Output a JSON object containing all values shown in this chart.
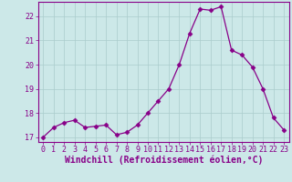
{
  "x": [
    0,
    1,
    2,
    3,
    4,
    5,
    6,
    7,
    8,
    9,
    10,
    11,
    12,
    13,
    14,
    15,
    16,
    17,
    18,
    19,
    20,
    21,
    22,
    23
  ],
  "y": [
    17.0,
    17.4,
    17.6,
    17.7,
    17.4,
    17.45,
    17.5,
    17.1,
    17.2,
    17.5,
    18.0,
    18.5,
    19.0,
    20.0,
    21.3,
    22.3,
    22.25,
    22.4,
    20.6,
    20.4,
    19.9,
    19.0,
    17.8,
    17.3
  ],
  "line_color": "#880088",
  "marker": "D",
  "marker_size": 2.5,
  "bg_color": "#cce8e8",
  "grid_color": "#aacccc",
  "xlabel": "Windchill (Refroidissement éolien,°C)",
  "xlabel_color": "#880088",
  "ylim_min": 16.8,
  "ylim_max": 22.6,
  "xlim_min": -0.5,
  "xlim_max": 23.5,
  "yticks": [
    17,
    18,
    19,
    20,
    21,
    22
  ],
  "xticks": [
    0,
    1,
    2,
    3,
    4,
    5,
    6,
    7,
    8,
    9,
    10,
    11,
    12,
    13,
    14,
    15,
    16,
    17,
    18,
    19,
    20,
    21,
    22,
    23
  ],
  "tick_color": "#880088",
  "tick_fontsize": 6,
  "xlabel_fontsize": 7,
  "spine_color": "#880088",
  "linewidth": 0.9
}
